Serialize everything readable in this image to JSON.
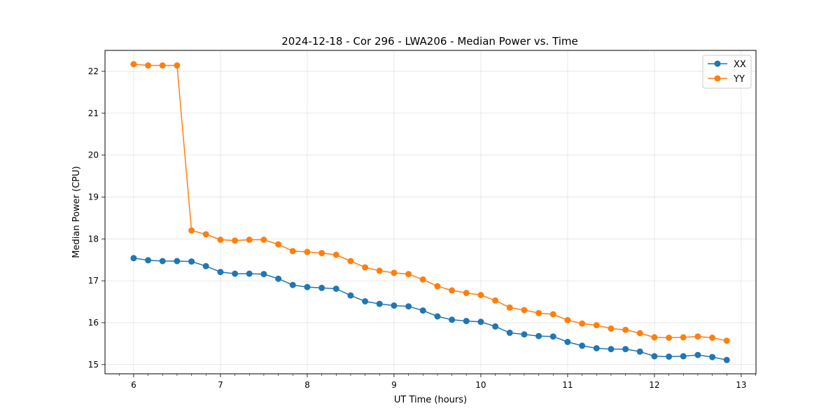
{
  "chart_data": {
    "type": "line",
    "title": "2024-12-18 - Cor 296 - LWA206 - Median Power vs. Time",
    "xlabel": "UT Time (hours)",
    "ylabel": "Median Power (CPU)",
    "xlim": [
      5.67,
      13.17
    ],
    "ylim": [
      14.78,
      22.5
    ],
    "grid": true,
    "legend_position": "top-right",
    "x_ticks": [
      "6",
      "7",
      "8",
      "9",
      "10",
      "11",
      "12",
      "13"
    ],
    "y_ticks": [
      "15",
      "16",
      "17",
      "18",
      "19",
      "20",
      "21",
      "22"
    ],
    "x": [
      6.0,
      6.167,
      6.333,
      6.5,
      6.667,
      6.833,
      7.0,
      7.167,
      7.333,
      7.5,
      7.667,
      7.833,
      8.0,
      8.167,
      8.333,
      8.5,
      8.667,
      8.833,
      9.0,
      9.167,
      9.333,
      9.5,
      9.667,
      9.833,
      10.0,
      10.167,
      10.333,
      10.5,
      10.667,
      10.833,
      11.0,
      11.167,
      11.333,
      11.5,
      11.667,
      11.833,
      12.0,
      12.167,
      12.333,
      12.5,
      12.667,
      12.833
    ],
    "series": [
      {
        "name": "XX",
        "color": "#1f77b4",
        "values": [
          17.54,
          17.49,
          17.47,
          17.47,
          17.46,
          17.35,
          17.21,
          17.17,
          17.17,
          17.16,
          17.05,
          16.9,
          16.85,
          16.83,
          16.81,
          16.65,
          16.51,
          16.45,
          16.41,
          16.39,
          16.29,
          16.15,
          16.07,
          16.04,
          16.02,
          15.91,
          15.76,
          15.72,
          15.68,
          15.67,
          15.54,
          15.45,
          15.39,
          15.37,
          15.37,
          15.31,
          15.2,
          15.19,
          15.2,
          15.23,
          15.18,
          15.11
        ]
      },
      {
        "name": "YY",
        "color": "#ff7f0e",
        "values": [
          22.17,
          22.14,
          22.14,
          22.14,
          18.2,
          18.11,
          17.98,
          17.96,
          17.98,
          17.98,
          17.87,
          17.71,
          17.69,
          17.66,
          17.62,
          17.47,
          17.32,
          17.24,
          17.19,
          17.16,
          17.03,
          16.87,
          16.77,
          16.71,
          16.66,
          16.53,
          16.36,
          16.3,
          16.23,
          16.2,
          16.06,
          15.98,
          15.94,
          15.86,
          15.83,
          15.75,
          15.65,
          15.64,
          15.65,
          15.67,
          15.64,
          15.57
        ]
      }
    ]
  }
}
